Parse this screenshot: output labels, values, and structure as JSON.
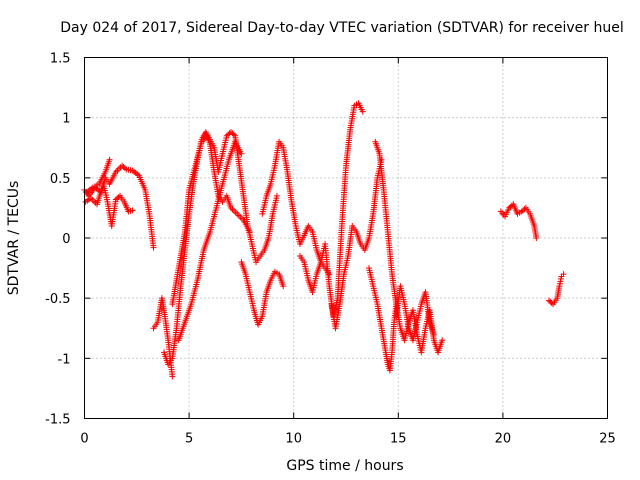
{
  "chart_data": {
    "type": "scatter",
    "title": "Day 024 of 2017, Sidereal Day-to-day VTEC variation (SDTVAR) for receiver huel",
    "xlabel": "GPS time / hours",
    "ylabel": "SDTVAR / TECUs",
    "xlim": [
      0,
      25
    ],
    "ylim": [
      -1.5,
      1.5
    ],
    "xticks": [
      0,
      5,
      10,
      15,
      20,
      25
    ],
    "yticks": [
      -1.5,
      -1,
      -0.5,
      0,
      0.5,
      1,
      1.5
    ],
    "xtick_labels": [
      "0",
      "5",
      "10",
      "15",
      "20",
      "25"
    ],
    "ytick_labels": [
      "-1.5",
      "-1",
      "-0.5",
      "0",
      "0.5",
      "1",
      "1.5"
    ],
    "grid": true,
    "marker": "+",
    "color": "#ff0000",
    "series": [
      {
        "name": "s1",
        "x": [
          0.0,
          0.2,
          0.5,
          0.8,
          1.0,
          1.2,
          1.5,
          1.8,
          2.0,
          2.3,
          2.6,
          2.9,
          3.1,
          3.3
        ],
        "y": [
          0.4,
          0.35,
          0.42,
          0.38,
          0.5,
          0.45,
          0.55,
          0.6,
          0.57,
          0.56,
          0.52,
          0.4,
          0.2,
          -0.08
        ]
      },
      {
        "name": "s2",
        "x": [
          0.05,
          0.3,
          0.6,
          0.9,
          1.1,
          1.3,
          1.5,
          1.7,
          1.9,
          2.1,
          2.3
        ],
        "y": [
          0.3,
          0.33,
          0.28,
          0.45,
          0.3,
          0.1,
          0.32,
          0.35,
          0.3,
          0.22,
          0.23
        ]
      },
      {
        "name": "s3",
        "x": [
          0.1,
          0.4,
          0.7,
          1.0,
          1.2
        ],
        "y": [
          0.38,
          0.42,
          0.45,
          0.55,
          0.65
        ]
      },
      {
        "name": "s4",
        "x": [
          3.3,
          3.5,
          3.7,
          3.8,
          4.0,
          4.1,
          4.2
        ],
        "y": [
          -0.75,
          -0.7,
          -0.5,
          -0.6,
          -0.85,
          -1.0,
          -1.15
        ]
      },
      {
        "name": "s5",
        "x": [
          3.8,
          4.0,
          4.2,
          4.4,
          4.6,
          4.8,
          5.0,
          5.2,
          5.4,
          5.6,
          5.8,
          6.0,
          6.2,
          6.4,
          6.6,
          6.8,
          7.0,
          7.3,
          7.6,
          7.9
        ],
        "y": [
          -0.95,
          -1.05,
          -1.0,
          -0.75,
          -0.4,
          -0.1,
          0.2,
          0.45,
          0.65,
          0.82,
          0.88,
          0.78,
          0.55,
          0.35,
          0.3,
          0.35,
          0.25,
          0.2,
          0.15,
          0.05
        ]
      },
      {
        "name": "s6",
        "x": [
          4.2,
          4.5,
          4.8,
          5.0,
          5.3,
          5.6,
          5.9,
          6.2,
          6.4,
          6.6,
          6.8,
          7.0,
          7.2,
          7.4,
          7.6,
          7.8,
          8.0,
          8.2,
          8.4,
          8.6,
          8.8,
          9.0,
          9.2
        ],
        "y": [
          -0.55,
          -0.25,
          0.05,
          0.4,
          0.6,
          0.8,
          0.85,
          0.75,
          0.55,
          0.7,
          0.85,
          0.88,
          0.85,
          0.6,
          0.35,
          0.1,
          -0.05,
          -0.2,
          -0.15,
          -0.1,
          0.0,
          0.2,
          0.35
        ]
      },
      {
        "name": "s7",
        "x": [
          4.5,
          4.8,
          5.1,
          5.4,
          5.7,
          6.0,
          6.3,
          6.6,
          6.9,
          7.2,
          7.5
        ],
        "y": [
          -0.85,
          -0.7,
          -0.55,
          -0.35,
          -0.1,
          0.05,
          0.25,
          0.45,
          0.65,
          0.8,
          0.7
        ]
      },
      {
        "name": "s8",
        "x": [
          7.5,
          7.7,
          7.9,
          8.1,
          8.3,
          8.5,
          8.7,
          8.9,
          9.1,
          9.3,
          9.5
        ],
        "y": [
          -0.2,
          -0.3,
          -0.45,
          -0.6,
          -0.72,
          -0.65,
          -0.45,
          -0.35,
          -0.28,
          -0.3,
          -0.4
        ]
      },
      {
        "name": "s9",
        "x": [
          8.5,
          8.7,
          8.9,
          9.1,
          9.3,
          9.5,
          9.7,
          9.9,
          10.1,
          10.3,
          10.5,
          10.7,
          10.9,
          11.1,
          11.3,
          11.5,
          11.7
        ],
        "y": [
          0.2,
          0.35,
          0.45,
          0.6,
          0.8,
          0.75,
          0.55,
          0.3,
          0.1,
          -0.05,
          0.02,
          0.1,
          0.05,
          -0.1,
          -0.2,
          -0.25,
          -0.3
        ]
      },
      {
        "name": "s10",
        "x": [
          10.3,
          10.5,
          10.7,
          10.9,
          11.1,
          11.3,
          11.5,
          11.7,
          11.9,
          12.1,
          12.3,
          12.5,
          12.7,
          12.9,
          13.1,
          13.3
        ],
        "y": [
          -0.15,
          -0.2,
          -0.35,
          -0.45,
          -0.3,
          -0.2,
          -0.05,
          -0.4,
          -0.65,
          -0.5,
          0.1,
          0.6,
          0.9,
          1.1,
          1.12,
          1.05
        ]
      },
      {
        "name": "s11",
        "x": [
          11.8,
          12.0,
          12.2,
          12.4,
          12.6,
          12.8,
          13.0,
          13.2,
          13.4,
          13.6,
          13.8,
          14.0,
          14.2
        ],
        "y": [
          -0.55,
          -0.75,
          -0.55,
          -0.3,
          -0.15,
          0.1,
          0.05,
          -0.05,
          -0.1,
          0.0,
          0.2,
          0.5,
          0.65
        ]
      },
      {
        "name": "s12",
        "x": [
          13.6,
          13.8,
          14.0,
          14.2,
          14.4,
          14.5,
          14.6,
          14.7,
          14.8,
          14.9
        ],
        "y": [
          -0.25,
          -0.4,
          -0.55,
          -0.75,
          -0.95,
          -1.05,
          -1.1,
          -0.95,
          -0.7,
          -0.55
        ]
      },
      {
        "name": "s13",
        "x": [
          13.9,
          14.1,
          14.3,
          14.5,
          14.7,
          14.9,
          15.1,
          15.3,
          15.5,
          15.7,
          15.9,
          16.1,
          16.3,
          16.5,
          16.7,
          16.9,
          17.1
        ],
        "y": [
          0.8,
          0.7,
          0.4,
          0.05,
          -0.3,
          -0.55,
          -0.75,
          -0.85,
          -0.7,
          -0.6,
          -0.8,
          -0.95,
          -0.75,
          -0.6,
          -0.85,
          -0.95,
          -0.85
        ]
      },
      {
        "name": "s14",
        "x": [
          14.9,
          15.1,
          15.3,
          15.5,
          15.7,
          15.9,
          16.1,
          16.3,
          16.5,
          16.7
        ],
        "y": [
          -0.65,
          -0.4,
          -0.55,
          -0.75,
          -0.85,
          -0.7,
          -0.55,
          -0.45,
          -0.7,
          -0.8
        ]
      },
      {
        "name": "s15",
        "x": [
          19.9,
          20.1,
          20.3,
          20.5,
          20.7,
          20.9,
          21.1,
          21.3,
          21.5,
          21.6
        ],
        "y": [
          0.22,
          0.18,
          0.25,
          0.28,
          0.2,
          0.22,
          0.25,
          0.2,
          0.1,
          0.0
        ]
      },
      {
        "name": "s16",
        "x": [
          22.2,
          22.4,
          22.6,
          22.7,
          22.8,
          22.9
        ],
        "y": [
          -0.52,
          -0.55,
          -0.5,
          -0.4,
          -0.32,
          -0.3
        ]
      }
    ]
  }
}
